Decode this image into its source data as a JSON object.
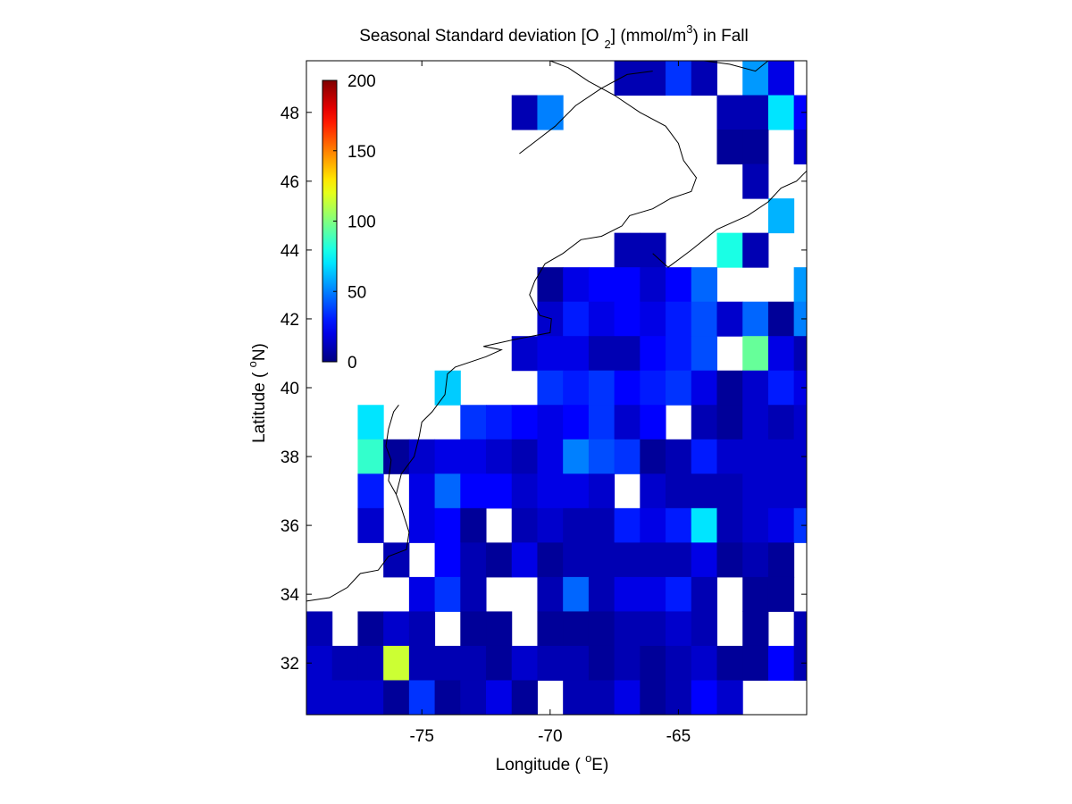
{
  "chart_data": {
    "type": "heatmap",
    "title": "Seasonal Standard deviation [O 2] (mmol/m3) in  Fall",
    "title_parts": {
      "main": "Seasonal Standard deviation [O",
      "sub": "2",
      "unit_pre": "] (mmol/m",
      "unit_sup": "3",
      "unit_post": ") in  Fall"
    },
    "xlabel": "Longitude ( oE)",
    "xlabel_parts": {
      "pre": "Longitude ( ",
      "sup": "o",
      "post": "E)"
    },
    "ylabel": "Latitude ( oN)",
    "ylabel_parts": {
      "pre": "Latitude ( ",
      "sup": "o",
      "post": "N)"
    },
    "xlim": [
      -79.5,
      -60
    ],
    "ylim": [
      30.5,
      49.5
    ],
    "cell_size_degrees": 1,
    "x_ticks": [
      -75,
      -70,
      -65
    ],
    "x_tick_labels": [
      "-75",
      "-70",
      "-65"
    ],
    "y_ticks": [
      32,
      34,
      36,
      38,
      40,
      42,
      44,
      46,
      48
    ],
    "y_tick_labels": [
      "32",
      "34",
      "36",
      "38",
      "40",
      "42",
      "44",
      "46",
      "48"
    ],
    "colorbar": {
      "colormap": "jet",
      "range": [
        0,
        200
      ],
      "ticks": [
        0,
        50,
        100,
        150,
        200
      ],
      "tick_labels": [
        "0",
        "50",
        "100",
        "150",
        "200"
      ],
      "placement": "top-left inside axes"
    },
    "columns_lon_centers": [
      -79,
      -78,
      -77,
      -76,
      -75,
      -74,
      -73,
      -72,
      -71,
      -70,
      -69,
      -68,
      -67,
      -66,
      -65,
      -64,
      -63,
      -62,
      -61,
      -60
    ],
    "rows_lat_centers": [
      49,
      48,
      47,
      46,
      45,
      44,
      43,
      42,
      41,
      40,
      39,
      38,
      37,
      36,
      35,
      34,
      33,
      32,
      31
    ],
    "values": [
      [
        null,
        null,
        null,
        null,
        null,
        null,
        null,
        null,
        null,
        null,
        null,
        null,
        10,
        10,
        35,
        10,
        null,
        55,
        20,
        null
      ],
      [
        null,
        null,
        null,
        null,
        null,
        null,
        null,
        null,
        10,
        50,
        null,
        null,
        null,
        null,
        null,
        null,
        10,
        10,
        70,
        25
      ],
      [
        null,
        null,
        null,
        null,
        null,
        null,
        null,
        null,
        null,
        null,
        null,
        null,
        null,
        null,
        null,
        null,
        5,
        5,
        null,
        15
      ],
      [
        null,
        null,
        null,
        null,
        null,
        null,
        null,
        null,
        null,
        null,
        null,
        null,
        null,
        null,
        null,
        null,
        null,
        10,
        null,
        null
      ],
      [
        null,
        null,
        null,
        null,
        null,
        null,
        null,
        null,
        null,
        null,
        null,
        null,
        null,
        null,
        null,
        null,
        null,
        null,
        60,
        null
      ],
      [
        null,
        null,
        null,
        null,
        null,
        null,
        null,
        null,
        null,
        null,
        null,
        null,
        10,
        10,
        null,
        null,
        80,
        10,
        null,
        null
      ],
      [
        null,
        null,
        null,
        null,
        null,
        null,
        null,
        null,
        null,
        5,
        20,
        25,
        25,
        15,
        25,
        45,
        null,
        null,
        null,
        55
      ],
      [
        null,
        null,
        null,
        null,
        null,
        null,
        null,
        null,
        null,
        15,
        30,
        20,
        25,
        20,
        30,
        40,
        15,
        45,
        5,
        50
      ],
      [
        null,
        null,
        null,
        null,
        null,
        null,
        null,
        null,
        15,
        20,
        20,
        10,
        10,
        25,
        30,
        40,
        null,
        95,
        20,
        10
      ],
      [
        null,
        null,
        null,
        null,
        null,
        65,
        null,
        null,
        null,
        35,
        30,
        35,
        25,
        30,
        35,
        20,
        5,
        15,
        30,
        20
      ],
      [
        null,
        null,
        70,
        null,
        null,
        null,
        35,
        30,
        25,
        20,
        25,
        35,
        15,
        25,
        null,
        10,
        5,
        15,
        10,
        15
      ],
      [
        null,
        null,
        85,
        5,
        15,
        20,
        20,
        15,
        10,
        20,
        50,
        40,
        35,
        5,
        10,
        30,
        15,
        15,
        15,
        15
      ],
      [
        null,
        null,
        30,
        null,
        20,
        45,
        25,
        25,
        15,
        20,
        20,
        15,
        null,
        15,
        10,
        10,
        10,
        15,
        15,
        15
      ],
      [
        null,
        null,
        15,
        null,
        20,
        25,
        5,
        null,
        10,
        15,
        10,
        10,
        30,
        20,
        30,
        70,
        10,
        15,
        20,
        35
      ],
      [
        null,
        null,
        null,
        10,
        null,
        25,
        10,
        5,
        20,
        5,
        10,
        10,
        10,
        10,
        10,
        20,
        5,
        10,
        5,
        null
      ],
      [
        null,
        null,
        null,
        null,
        20,
        35,
        10,
        null,
        null,
        10,
        45,
        10,
        20,
        20,
        30,
        10,
        null,
        5,
        5,
        null
      ],
      [
        10,
        null,
        5,
        15,
        10,
        null,
        5,
        5,
        null,
        5,
        5,
        5,
        10,
        10,
        15,
        10,
        null,
        5,
        null,
        10
      ],
      [
        15,
        10,
        10,
        115,
        10,
        10,
        10,
        5,
        15,
        10,
        10,
        5,
        10,
        5,
        10,
        15,
        5,
        5,
        25,
        10
      ],
      [
        15,
        15,
        15,
        5,
        35,
        5,
        10,
        20,
        5,
        null,
        10,
        10,
        20,
        5,
        10,
        25,
        15,
        null,
        null,
        null
      ]
    ]
  }
}
